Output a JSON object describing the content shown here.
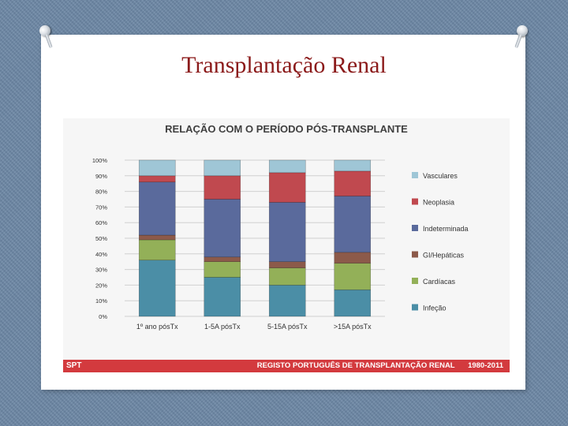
{
  "slide": {
    "title": "Transplantação Renal"
  },
  "footer": {
    "left": "SPT",
    "registry": "REGISTO PORTUGUÊS DE TRANSPLANTAÇÃO RENAL",
    "years": "1980-2011"
  },
  "chart_data": {
    "type": "bar",
    "stacked": true,
    "title": "RELAÇÃO COM O PERÍODO PÓS-TRANSPLANTE",
    "xlabel": "",
    "ylabel": "",
    "ylim": [
      0,
      100
    ],
    "y_ticks": [
      "0%",
      "10%",
      "20%",
      "30%",
      "40%",
      "50%",
      "60%",
      "70%",
      "80%",
      "90%",
      "100%"
    ],
    "grid": true,
    "legend_position": "right",
    "categories": [
      "1º ano pósTx",
      "1-5A pósTx",
      "5-15A pósTx",
      ">15A pósTx"
    ],
    "series": [
      {
        "name": "Infeção",
        "color": "#4b8ea6",
        "values": [
          36,
          25,
          20,
          17
        ]
      },
      {
        "name": "Cardíacas",
        "color": "#93b058",
        "values": [
          13,
          10,
          11,
          17
        ]
      },
      {
        "name": "GI/Hepáticas",
        "color": "#8c5a4a",
        "values": [
          3,
          3,
          4,
          7
        ]
      },
      {
        "name": "Indeterminada",
        "color": "#5a6a9c",
        "values": [
          34,
          37,
          38,
          36
        ]
      },
      {
        "name": "Neoplasia",
        "color": "#c0494f",
        "values": [
          4,
          15,
          19,
          16
        ]
      },
      {
        "name": "Vasculares",
        "color": "#9fc6d6",
        "values": [
          10,
          10,
          8,
          7
        ]
      }
    ]
  }
}
